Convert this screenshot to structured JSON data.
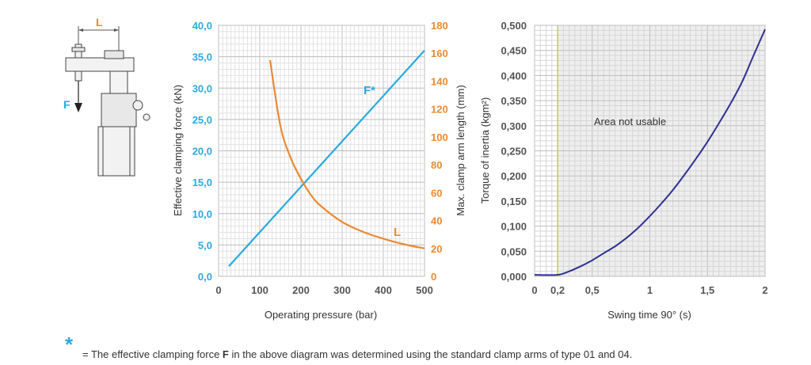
{
  "diagram": {
    "label_L": "L",
    "label_F": "F"
  },
  "chart_data": [
    {
      "type": "line",
      "xlabel": "Operating pressure (bar)",
      "ylabel": "Effective clamping force (kN)",
      "y2label": "Max. clamp arm length (mm)",
      "xlim": [
        0,
        500
      ],
      "ylim": [
        0,
        40
      ],
      "y2lim": [
        0,
        180
      ],
      "x_ticks": [
        "0",
        "100",
        "200",
        "300",
        "400",
        "500"
      ],
      "y_ticks": [
        "0,0",
        "5,0",
        "10,0",
        "15,0",
        "20,0",
        "25,0",
        "30,0",
        "35,0",
        "40,0"
      ],
      "y2_ticks": [
        "0",
        "20",
        "40",
        "60",
        "80",
        "100",
        "120",
        "140",
        "160",
        "180"
      ],
      "grid": true,
      "colors": {
        "F": "#29aae1",
        "L": "#ea8a32"
      },
      "series": [
        {
          "name": "F*",
          "axis": "left",
          "x": [
            25,
            500
          ],
          "y": [
            1.6,
            36.0
          ]
        },
        {
          "name": "L",
          "axis": "right",
          "x": [
            125,
            150,
            175,
            200,
            225,
            250,
            300,
            350,
            400,
            450,
            500
          ],
          "y": [
            155,
            108,
            85,
            70,
            58,
            50,
            39,
            32,
            27,
            23,
            20
          ]
        }
      ]
    },
    {
      "type": "line",
      "xlabel": "Swing time 90° (s)",
      "ylabel": "Torque of inertia (kgm²)",
      "xlim": [
        0,
        2
      ],
      "ylim": [
        0,
        0.5
      ],
      "x_ticks": [
        "0",
        "0,2",
        "0,5",
        "1",
        "1,5",
        "2"
      ],
      "y_ticks": [
        "0,000",
        "0,050",
        "0,100",
        "0,150",
        "0,200",
        "0,250",
        "0,300",
        "0,350",
        "0,400",
        "0,450",
        "0,500"
      ],
      "grid": true,
      "annotation": "Area not usable",
      "shaded_region": [
        0.2,
        2
      ],
      "vline_x": 0.2,
      "colors": {
        "curve": "#2e3192",
        "vline": "#c8d44a",
        "shade": "#eeeeee"
      },
      "series": [
        {
          "x": [
            0,
            0.2,
            0.3,
            0.4,
            0.5,
            0.6,
            0.7,
            0.8,
            0.9,
            1.0,
            1.1,
            1.2,
            1.3,
            1.4,
            1.5,
            1.6,
            1.7,
            1.8,
            1.9,
            2.0
          ],
          "y": [
            0.003,
            0.003,
            0.01,
            0.02,
            0.032,
            0.046,
            0.06,
            0.077,
            0.097,
            0.12,
            0.145,
            0.172,
            0.202,
            0.234,
            0.268,
            0.305,
            0.344,
            0.387,
            0.44,
            0.492
          ]
        }
      ]
    }
  ],
  "footnote": {
    "star": "*",
    "before": "= The effective clamping force ",
    "bold": "F",
    "after": " in the above diagram was determined using the standard clamp arms of type 01 and 04."
  }
}
